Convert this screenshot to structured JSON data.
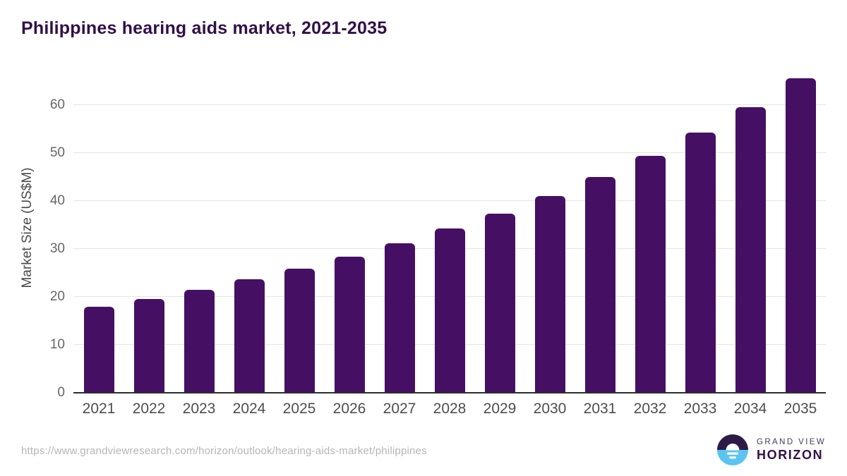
{
  "header": {
    "title": "Philippines hearing aids market, 2021-2035"
  },
  "chart_data": {
    "type": "bar",
    "title": "Philippines hearing aids market, 2021-2035",
    "categories": [
      "2021",
      "2022",
      "2023",
      "2024",
      "2025",
      "2026",
      "2027",
      "2028",
      "2029",
      "2030",
      "2031",
      "2032",
      "2033",
      "2034",
      "2035"
    ],
    "values": [
      17.9,
      19.6,
      21.5,
      23.6,
      25.9,
      28.4,
      31.1,
      34.2,
      37.4,
      41.0,
      45.0,
      49.4,
      54.2,
      59.6,
      65.6
    ],
    "xlabel": "",
    "ylabel": "Market Size (US$M)",
    "ylim": [
      0,
      68.8
    ],
    "yticks": [
      0,
      10,
      20,
      30,
      40,
      50,
      60
    ],
    "grid": "horizontal",
    "legend": "none",
    "bar_color": "#451063",
    "gridline_color": "#e4e4e4",
    "axis_line_color": "#2d2d2d",
    "tick_label_color": "#666666"
  },
  "footer": {
    "source_url": "https://www.grandviewresearch.com/horizon/outlook/hearing-aids-market/philippines",
    "logo": {
      "line1": "GRAND VIEW",
      "line2": "HORIZON",
      "icon_top_color": "#2e1a47",
      "icon_bottom_color": "#59c5f0"
    }
  }
}
